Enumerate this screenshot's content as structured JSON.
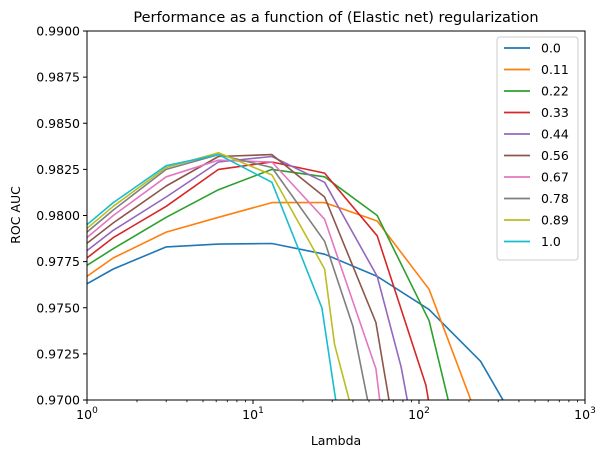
{
  "chart_data": {
    "type": "line",
    "title": "Performance as a function of (Elastic net) regularization",
    "xlabel": "Lambda",
    "ylabel": "ROC AUC",
    "xscale": "log",
    "xlim": [
      1,
      1000
    ],
    "ylim": [
      0.97,
      0.99
    ],
    "x_ticks": [
      {
        "value": 1,
        "base": "10",
        "exp": "0"
      },
      {
        "value": 10,
        "base": "10",
        "exp": "1"
      },
      {
        "value": 100,
        "base": "10",
        "exp": "2"
      },
      {
        "value": 1000,
        "base": "10",
        "exp": "3"
      }
    ],
    "y_ticks": [
      {
        "value": 0.97,
        "label": "0.9700"
      },
      {
        "value": 0.9725,
        "label": "0.9725"
      },
      {
        "value": 0.975,
        "label": "0.9750"
      },
      {
        "value": 0.9775,
        "label": "0.9775"
      },
      {
        "value": 0.98,
        "label": "0.9800"
      },
      {
        "value": 0.9825,
        "label": "0.9825"
      },
      {
        "value": 0.985,
        "label": "0.9850"
      },
      {
        "value": 0.9875,
        "label": "0.9875"
      },
      {
        "value": 0.99,
        "label": "0.9900"
      }
    ],
    "grid": false,
    "legend": "top-right",
    "series": [
      {
        "name": "0.0",
        "color": "#1f77b4",
        "points": [
          [
            1,
            0.9763
          ],
          [
            1.44,
            0.9771
          ],
          [
            3,
            0.9783
          ],
          [
            6.2,
            0.97845
          ],
          [
            13,
            0.97848
          ],
          [
            27,
            0.9779
          ],
          [
            56,
            0.9767
          ],
          [
            115,
            0.9749
          ],
          [
            235,
            0.9721
          ],
          [
            330,
            0.9698
          ]
        ]
      },
      {
        "name": "0.11",
        "color": "#ff7f0e",
        "points": [
          [
            1,
            0.9767
          ],
          [
            1.44,
            0.9777
          ],
          [
            3,
            0.9791
          ],
          [
            6.2,
            0.9799
          ],
          [
            13,
            0.9807
          ],
          [
            27,
            0.9807
          ],
          [
            56,
            0.9797
          ],
          [
            115,
            0.976
          ],
          [
            205,
            0.97
          ]
        ]
      },
      {
        "name": "0.22",
        "color": "#2ca02c",
        "points": [
          [
            1,
            0.9773
          ],
          [
            1.44,
            0.9782
          ],
          [
            3,
            0.9799
          ],
          [
            6.2,
            0.9814
          ],
          [
            13,
            0.9825
          ],
          [
            27,
            0.9821
          ],
          [
            56,
            0.98
          ],
          [
            115,
            0.9743
          ],
          [
            150,
            0.97
          ]
        ]
      },
      {
        "name": "0.33",
        "color": "#d62728",
        "points": [
          [
            1,
            0.9777
          ],
          [
            1.44,
            0.9788
          ],
          [
            3,
            0.9805
          ],
          [
            6.2,
            0.9825
          ],
          [
            13,
            0.9829
          ],
          [
            27,
            0.9823
          ],
          [
            56,
            0.9789
          ],
          [
            110,
            0.9708
          ],
          [
            114,
            0.97
          ]
        ]
      },
      {
        "name": "0.44",
        "color": "#9467bd",
        "points": [
          [
            1,
            0.9781
          ],
          [
            1.44,
            0.9792
          ],
          [
            3,
            0.981
          ],
          [
            6.2,
            0.9829
          ],
          [
            13,
            0.9832
          ],
          [
            27,
            0.9818
          ],
          [
            56,
            0.9767
          ],
          [
            78,
            0.9718
          ],
          [
            85,
            0.97
          ]
        ]
      },
      {
        "name": "0.56",
        "color": "#8c564b",
        "points": [
          [
            1,
            0.9785
          ],
          [
            1.44,
            0.9796
          ],
          [
            3,
            0.9816
          ],
          [
            6.2,
            0.9832
          ],
          [
            13,
            0.9833
          ],
          [
            27,
            0.981
          ],
          [
            55,
            0.9742
          ],
          [
            66,
            0.97
          ]
        ]
      },
      {
        "name": "0.67",
        "color": "#e377c2",
        "points": [
          [
            1,
            0.9788
          ],
          [
            1.44,
            0.98
          ],
          [
            3,
            0.9821
          ],
          [
            6.2,
            0.983
          ],
          [
            13,
            0.9829
          ],
          [
            27,
            0.9798
          ],
          [
            55,
            0.9717
          ],
          [
            58,
            0.97
          ]
        ]
      },
      {
        "name": "0.78",
        "color": "#7f7f7f",
        "points": [
          [
            1,
            0.9791
          ],
          [
            1.44,
            0.9803
          ],
          [
            3,
            0.9825
          ],
          [
            6.2,
            0.9833
          ],
          [
            13,
            0.9826
          ],
          [
            27,
            0.9786
          ],
          [
            40,
            0.974
          ],
          [
            49,
            0.97
          ]
        ]
      },
      {
        "name": "0.89",
        "color": "#bcbd22",
        "points": [
          [
            1,
            0.9793
          ],
          [
            1.44,
            0.9805
          ],
          [
            3,
            0.9826
          ],
          [
            6.2,
            0.9834
          ],
          [
            13,
            0.9822
          ],
          [
            27,
            0.9771
          ],
          [
            31,
            0.973
          ],
          [
            38,
            0.97
          ]
        ]
      },
      {
        "name": "1.0",
        "color": "#17becf",
        "points": [
          [
            1,
            0.9795
          ],
          [
            1.44,
            0.9807
          ],
          [
            3,
            0.9827
          ],
          [
            6.2,
            0.9833
          ],
          [
            13,
            0.9818
          ],
          [
            26,
            0.975
          ],
          [
            31.5,
            0.97
          ]
        ]
      }
    ]
  }
}
